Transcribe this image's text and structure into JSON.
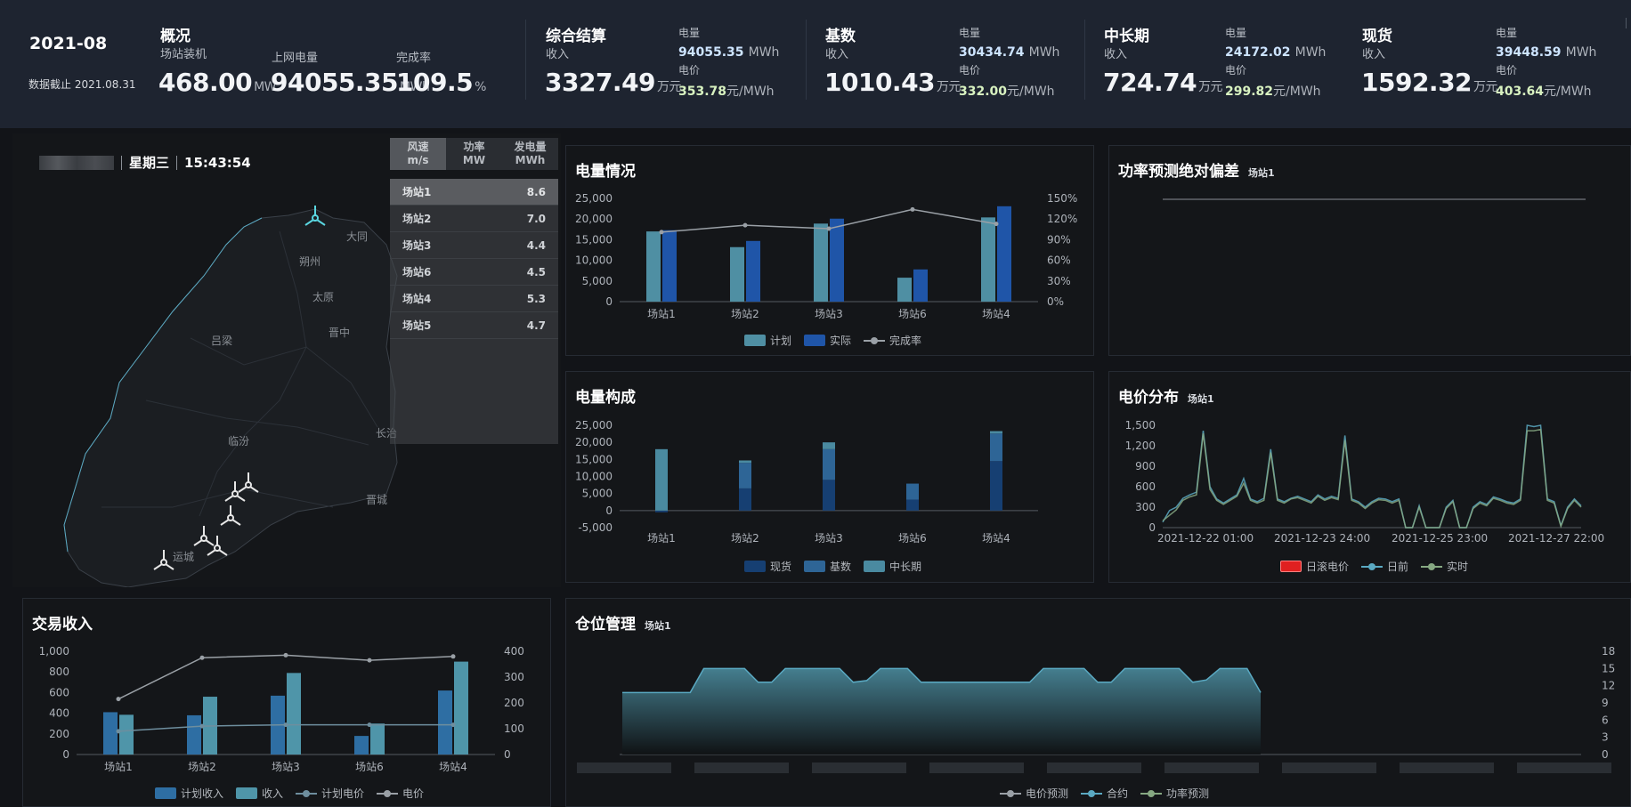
{
  "header": {
    "month": "2021-08",
    "data_cutoff": "数据截止 2021.08.31",
    "overview": {
      "title": "概况",
      "capacity_label": "场站装机",
      "capacity_value": "468.00",
      "capacity_unit": "MW",
      "grid_label": "上网电量",
      "grid_value": "94055.35",
      "grid_unit": "MWh",
      "rate_label": "完成率",
      "rate_value": "109.5",
      "rate_unit": "%"
    },
    "groups": [
      {
        "title": "综合结算",
        "income_label": "收入",
        "income_value": "3327.49",
        "income_unit": "万元",
        "energy_label": "电量",
        "energy_value": "94055.35",
        "energy_unit": "MWh",
        "price_label": "电价",
        "price_value": "353.78",
        "price_unit": "元/MWh"
      },
      {
        "title": "基数",
        "income_label": "收入",
        "income_value": "1010.43",
        "income_unit": "万元",
        "energy_label": "电量",
        "energy_value": "30434.74",
        "energy_unit": "MWh",
        "price_label": "电价",
        "price_value": "332.00",
        "price_unit": "元/MWh"
      },
      {
        "title": "中长期",
        "income_label": "收入",
        "income_value": "724.74",
        "income_unit": "万元",
        "energy_label": "电量",
        "energy_value": "24172.02",
        "energy_unit": "MWh",
        "price_label": "电价",
        "price_value": "299.82",
        "price_unit": "元/MWh"
      },
      {
        "title": "现货",
        "income_label": "收入",
        "income_value": "1592.32",
        "income_unit": "万元",
        "energy_label": "电量",
        "energy_value": "39448.59",
        "energy_unit": "MWh",
        "price_label": "电价",
        "price_value": "403.64",
        "price_unit": "元/MWh"
      }
    ]
  },
  "map": {
    "weekday": "星期三",
    "time": "15:43:54",
    "tabs": [
      {
        "line1": "风速",
        "line2": "m/s"
      },
      {
        "line1": "功率",
        "line2": "MW"
      },
      {
        "line1": "发电量",
        "line2": "MWh"
      }
    ],
    "stations": [
      {
        "name": "场站1",
        "value": "8.6"
      },
      {
        "name": "场站2",
        "value": "7.0"
      },
      {
        "name": "场站3",
        "value": "4.4"
      },
      {
        "name": "场站6",
        "value": "4.5"
      },
      {
        "name": "场站4",
        "value": "5.3"
      },
      {
        "name": "场站5",
        "value": "4.7"
      }
    ],
    "cities": [
      "大同",
      "朔州",
      "太原",
      "晋中",
      "吕梁",
      "临汾",
      "长治",
      "晋城",
      "运城"
    ]
  },
  "energy_chart": {
    "title": "电量情况",
    "legend": [
      "计划",
      "实际",
      "完成率"
    ],
    "colors": {
      "plan": "#4f8fa3",
      "actual": "#1f55a8",
      "rate": "#9aa0a6"
    },
    "chart_data": {
      "type": "bar",
      "categories": [
        "场站1",
        "场站2",
        "场站3",
        "场站6",
        "场站4"
      ],
      "series": [
        {
          "name": "计划",
          "values": [
            17000,
            13200,
            18900,
            5800,
            20400
          ]
        },
        {
          "name": "实际",
          "values": [
            17300,
            14700,
            20100,
            7800,
            23100
          ]
        },
        {
          "name": "完成率",
          "axis": "right",
          "values": [
            101,
            111,
            106,
            134,
            113
          ]
        }
      ],
      "ylim": [
        0,
        25000
      ],
      "y_ticks": [
        "25,000",
        "20,000",
        "15,000",
        "10,000",
        "5,000",
        "0"
      ],
      "y2lim": [
        0,
        150
      ],
      "y2_ticks": [
        "150%",
        "120%",
        "90%",
        "60%",
        "30%",
        "0%"
      ]
    }
  },
  "deviation_chart": {
    "title": "功率预测绝对偏差",
    "station": "场站1",
    "chart_data": {
      "type": "line",
      "series": [
        {
          "name": "偏差",
          "values": [
            0,
            0
          ]
        }
      ]
    }
  },
  "composition_chart": {
    "title": "电量构成",
    "legend": [
      "现货",
      "基数",
      "中长期"
    ],
    "colors": {
      "spot": "#163f72",
      "base": "#2e6596",
      "mid": "#4a8aa0"
    },
    "chart_data": {
      "type": "bar",
      "stacked": true,
      "categories": [
        "场站1",
        "场站2",
        "场站3",
        "场站6",
        "场站4"
      ],
      "series": [
        {
          "name": "现货",
          "values": [
            -500,
            6500,
            9000,
            3200,
            14500
          ]
        },
        {
          "name": "基数",
          "values": [
            0,
            7500,
            9000,
            4700,
            8100
          ]
        },
        {
          "name": "中长期",
          "values": [
            18000,
            700,
            2000,
            0,
            700
          ]
        }
      ],
      "ylim": [
        -5000,
        25000
      ],
      "y_ticks": [
        "25,000",
        "20,000",
        "15,000",
        "10,000",
        "5,000",
        "0",
        "-5,000"
      ]
    }
  },
  "price_chart": {
    "title": "电价分布",
    "station": "场站1",
    "legend": [
      "日滚电价",
      "日前",
      "实时"
    ],
    "colors": {
      "rolling": "#e02020",
      "dayahead": "#5aa9c2",
      "realtime": "#86a882"
    },
    "chart_data": {
      "type": "line",
      "x_ticks": [
        "2021-12-22 01:00",
        "2021-12-23 24:00",
        "2021-12-25 23:00",
        "2021-12-27 22:00"
      ],
      "ylim": [
        0,
        1500
      ],
      "y_ticks": [
        "1,500",
        "1,200",
        "900",
        "600",
        "300",
        "0"
      ],
      "series": [
        {
          "name": "日前",
          "values": [
            80,
            250,
            300,
            430,
            480,
            520,
            1420,
            600,
            420,
            360,
            420,
            480,
            720,
            420,
            380,
            430,
            1150,
            420,
            380,
            430,
            460,
            420,
            380,
            480,
            420,
            460,
            430,
            1350,
            420,
            380,
            300,
            380,
            430,
            420,
            380,
            420,
            0,
            0,
            320,
            0,
            0,
            0,
            300,
            400,
            0,
            0,
            300,
            380,
            340,
            450,
            420,
            380,
            360,
            420,
            1500,
            1480,
            1500,
            420,
            380,
            30,
            300,
            420,
            320
          ]
        },
        {
          "name": "实时",
          "values": [
            100,
            180,
            260,
            400,
            450,
            480,
            1380,
            560,
            400,
            340,
            400,
            460,
            650,
            400,
            360,
            400,
            1100,
            400,
            360,
            420,
            440,
            400,
            360,
            460,
            400,
            440,
            410,
            1280,
            400,
            360,
            280,
            360,
            410,
            400,
            360,
            400,
            0,
            0,
            300,
            0,
            0,
            0,
            280,
            380,
            0,
            0,
            280,
            360,
            320,
            430,
            400,
            360,
            340,
            400,
            1420,
            1420,
            1440,
            400,
            360,
            20,
            280,
            400,
            300
          ]
        }
      ]
    }
  },
  "trade_chart": {
    "title": "交易收入",
    "legend": [
      "计划收入",
      "收入",
      "计划电价",
      "电价"
    ],
    "colors": {
      "plan": "#2e6ea3",
      "income": "#4f95a9",
      "planprice": "#6e8e9e",
      "price": "#9aa0a6"
    },
    "chart_data": {
      "type": "bar",
      "categories": [
        "场站1",
        "场站2",
        "场站3",
        "场站6",
        "场站4"
      ],
      "series": [
        {
          "name": "计划收入",
          "values": [
            410,
            380,
            570,
            180,
            620
          ]
        },
        {
          "name": "收入",
          "values": [
            385,
            560,
            790,
            300,
            900
          ]
        },
        {
          "name": "计划电价",
          "axis": "right",
          "values": [
            90,
            110,
            115,
            115,
            115
          ]
        },
        {
          "name": "电价",
          "axis": "right",
          "values": [
            215,
            375,
            385,
            365,
            380
          ]
        }
      ],
      "ylim": [
        0,
        1000
      ],
      "y_ticks": [
        "1,000",
        "800",
        "600",
        "400",
        "200",
        "0"
      ],
      "y2lim": [
        0,
        400
      ],
      "y2_ticks": [
        "400",
        "300",
        "200",
        "100",
        "0"
      ]
    }
  },
  "position_chart": {
    "title": "仓位管理",
    "station": "场站1",
    "legend": [
      "电价预测",
      "合约",
      "功率预测"
    ],
    "colors": {
      "pricepred": "#9aa0a6",
      "contract": "#5aa9c2",
      "powerpred": "#86a882"
    },
    "chart_data": {
      "type": "area",
      "ylim": [
        0,
        18
      ],
      "y_ticks": [
        "18",
        "15",
        "12",
        "9",
        "6",
        "3",
        "0"
      ],
      "series": [
        {
          "name": "合约",
          "values": [
            10.8,
            10.8,
            10.8,
            10.8,
            10.8,
            10.8,
            15,
            15,
            15,
            15,
            12.6,
            12.6,
            15,
            15,
            15,
            15,
            15,
            12.6,
            12.9,
            15,
            15,
            15,
            12.6,
            12.6,
            12.6,
            12.6,
            12.6,
            12.6,
            12.6,
            12.6,
            12.6,
            15,
            15,
            15,
            15,
            12.6,
            12.6,
            15,
            15,
            15,
            15,
            15,
            12.6,
            13,
            15,
            15,
            15,
            10.8
          ]
        }
      ]
    }
  }
}
